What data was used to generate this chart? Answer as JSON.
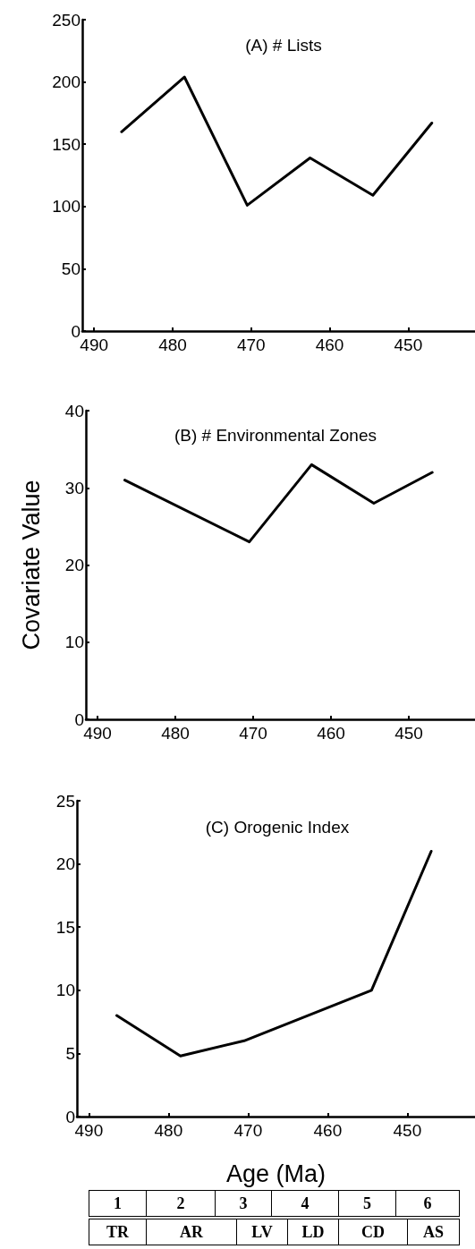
{
  "chart_data": [
    {
      "type": "line",
      "title": "(A) # Lists",
      "x": [
        486.5,
        478.5,
        470.5,
        462.5,
        454.5,
        447
      ],
      "series": [
        {
          "color": "#000000",
          "values": [
            160,
            204,
            101,
            139,
            109,
            167
          ]
        }
      ],
      "xlim": [
        491.5,
        441.5
      ],
      "xticks": [
        490,
        480,
        470,
        460,
        450
      ],
      "ylim": [
        0,
        250
      ],
      "yticks": [
        0,
        50,
        100,
        150,
        200,
        250
      ],
      "grid": false,
      "marker": "none",
      "line_style": "solid"
    },
    {
      "type": "line",
      "title": "(B) # Environmental Zones",
      "ylabel": "Covariate Value",
      "x": [
        486.5,
        470.5,
        462.5,
        454.5,
        447
      ],
      "series": [
        {
          "color": "#000000",
          "values": [
            31,
            23,
            33,
            28,
            32
          ]
        }
      ],
      "xlim": [
        491.5,
        441.5
      ],
      "xticks": [
        490,
        480,
        470,
        460,
        450
      ],
      "ylim": [
        0,
        40
      ],
      "yticks": [
        0,
        10,
        20,
        30,
        40
      ],
      "grid": false,
      "marker": "none",
      "line_style": "solid"
    },
    {
      "type": "line",
      "title": "(C) Orogenic Index",
      "xlabel": "Age (Ma)",
      "x": [
        486.5,
        478.5,
        470.5,
        454.5,
        447
      ],
      "series": [
        {
          "color": "#000000",
          "values": [
            8,
            4.8,
            6,
            10,
            21
          ]
        }
      ],
      "xlim": [
        491.5,
        441.5
      ],
      "xticks": [
        490,
        480,
        470,
        460,
        450
      ],
      "ylim": [
        0,
        25
      ],
      "yticks": [
        0,
        5,
        10,
        15,
        20,
        25
      ],
      "grid": false,
      "marker": "none",
      "line_style": "solid",
      "annotations": [
        "1",
        "2",
        "3",
        "4",
        "5",
        "6",
        "TR",
        "AR",
        "LV",
        "LD",
        "CD",
        "AS"
      ]
    }
  ]
}
